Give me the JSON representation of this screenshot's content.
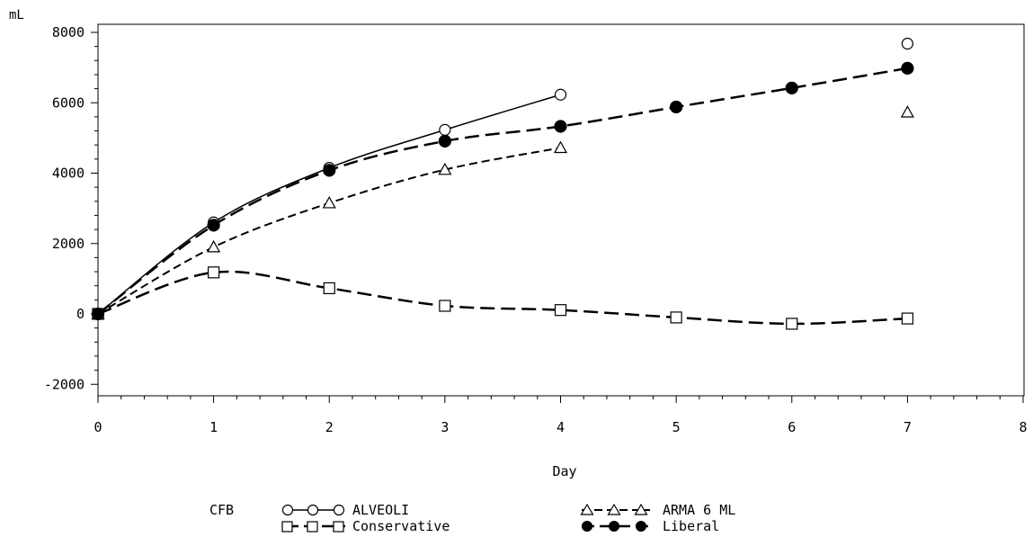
{
  "chart_data": {
    "type": "line",
    "title": "",
    "xlabel": "Day",
    "ylabel": "mL",
    "xlim": [
      0,
      8
    ],
    "ylim": [
      -2000,
      8000
    ],
    "x_ticks": [
      0,
      1,
      2,
      3,
      4,
      5,
      6,
      7,
      8
    ],
    "y_ticks": [
      -2000,
      0,
      2000,
      4000,
      6000,
      8000
    ],
    "grid": false,
    "legend_title": "CFB",
    "legend_position": "bottom",
    "series": [
      {
        "name": "ALVEOLI",
        "marker": "circle-open",
        "line": "solid",
        "x": [
          0,
          1,
          2,
          3,
          4,
          7
        ],
        "y": [
          0,
          2600,
          4150,
          5230,
          6230,
          7680
        ],
        "connected_count": 5
      },
      {
        "name": "ARMA 6 ML",
        "marker": "triangle-open",
        "line": "short-dash",
        "x": [
          0,
          1,
          2,
          3,
          4,
          7
        ],
        "y": [
          0,
          1900,
          3150,
          4100,
          4720,
          5730
        ],
        "connected_count": 5
      },
      {
        "name": "Conservative",
        "marker": "square-open",
        "line": "long-dash",
        "x": [
          0,
          1,
          2,
          3,
          4,
          5,
          6,
          7
        ],
        "y": [
          0,
          1180,
          730,
          230,
          110,
          -100,
          -280,
          -130
        ],
        "connected_count": 8
      },
      {
        "name": "Liberal",
        "marker": "circle-filled",
        "line": "long-dash",
        "x": [
          0,
          1,
          2,
          3,
          4,
          5,
          6,
          7
        ],
        "y": [
          0,
          2520,
          4080,
          4910,
          5330,
          5880,
          6420,
          6980
        ],
        "connected_count": 8
      }
    ]
  }
}
